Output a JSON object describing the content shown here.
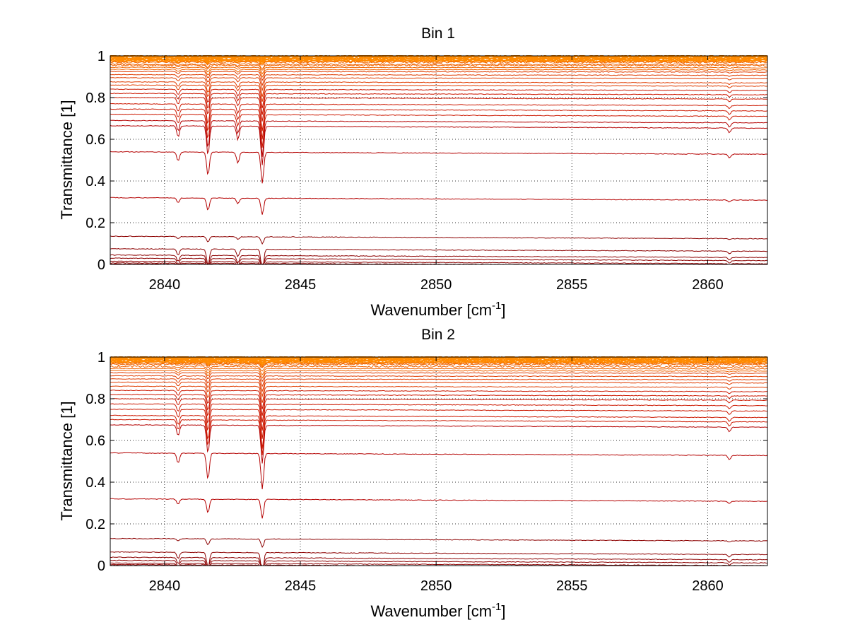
{
  "chart_data": [
    {
      "type": "line",
      "title": "Bin 1",
      "xlabel": "Wavenumber [cm",
      "xlabel_sup": "-1",
      "xlabel_end": "]",
      "ylabel": "Transmittance [1]",
      "xlim": [
        2838,
        2862.2
      ],
      "ylim": [
        0,
        1
      ],
      "xticks": [
        2840,
        2845,
        2850,
        2855,
        2860
      ],
      "yticks": [
        0,
        0.2,
        0.4,
        0.6,
        0.8,
        1
      ],
      "grid": true,
      "legend": "none",
      "absorption_lines_cm-1": [
        2840.5,
        2841.6,
        2842.7,
        2843.6,
        2860.8
      ],
      "series_baselines": [
        1.0,
        0.995,
        0.99,
        0.985,
        0.98,
        0.975,
        0.97,
        0.96,
        0.955,
        0.945,
        0.935,
        0.925,
        0.91,
        0.895,
        0.875,
        0.86,
        0.84,
        0.82,
        0.8,
        0.77,
        0.745,
        0.72,
        0.69,
        0.665,
        0.54,
        0.32,
        0.135,
        0.075,
        0.045,
        0.03,
        0.015,
        0.007,
        0.002
      ],
      "lowest_minima_at_2843.6": [
        0.39,
        0.24,
        0.1
      ]
    },
    {
      "type": "line",
      "title": "Bin 2",
      "xlabel": "Wavenumber [cm",
      "xlabel_sup": "-1",
      "xlabel_end": "]",
      "ylabel": "Transmittance [1]",
      "xlim": [
        2838,
        2862.2
      ],
      "ylim": [
        0,
        1
      ],
      "xticks": [
        2840,
        2845,
        2850,
        2855,
        2860
      ],
      "yticks": [
        0,
        0.2,
        0.4,
        0.6,
        0.8,
        1
      ],
      "grid": true,
      "legend": "none",
      "absorption_lines_cm-1": [
        2840.5,
        2841.6,
        2843.6,
        2860.8
      ],
      "series_baselines": [
        1.0,
        0.998,
        0.995,
        0.99,
        0.985,
        0.98,
        0.975,
        0.97,
        0.965,
        0.955,
        0.945,
        0.935,
        0.925,
        0.91,
        0.895,
        0.88,
        0.86,
        0.84,
        0.82,
        0.8,
        0.775,
        0.75,
        0.72,
        0.7,
        0.675,
        0.54,
        0.32,
        0.13,
        0.065,
        0.04,
        0.025,
        0.012,
        0.005,
        0.001
      ],
      "lowest_minima_at_2843.6": [
        0.37,
        0.23,
        0.09
      ]
    }
  ]
}
